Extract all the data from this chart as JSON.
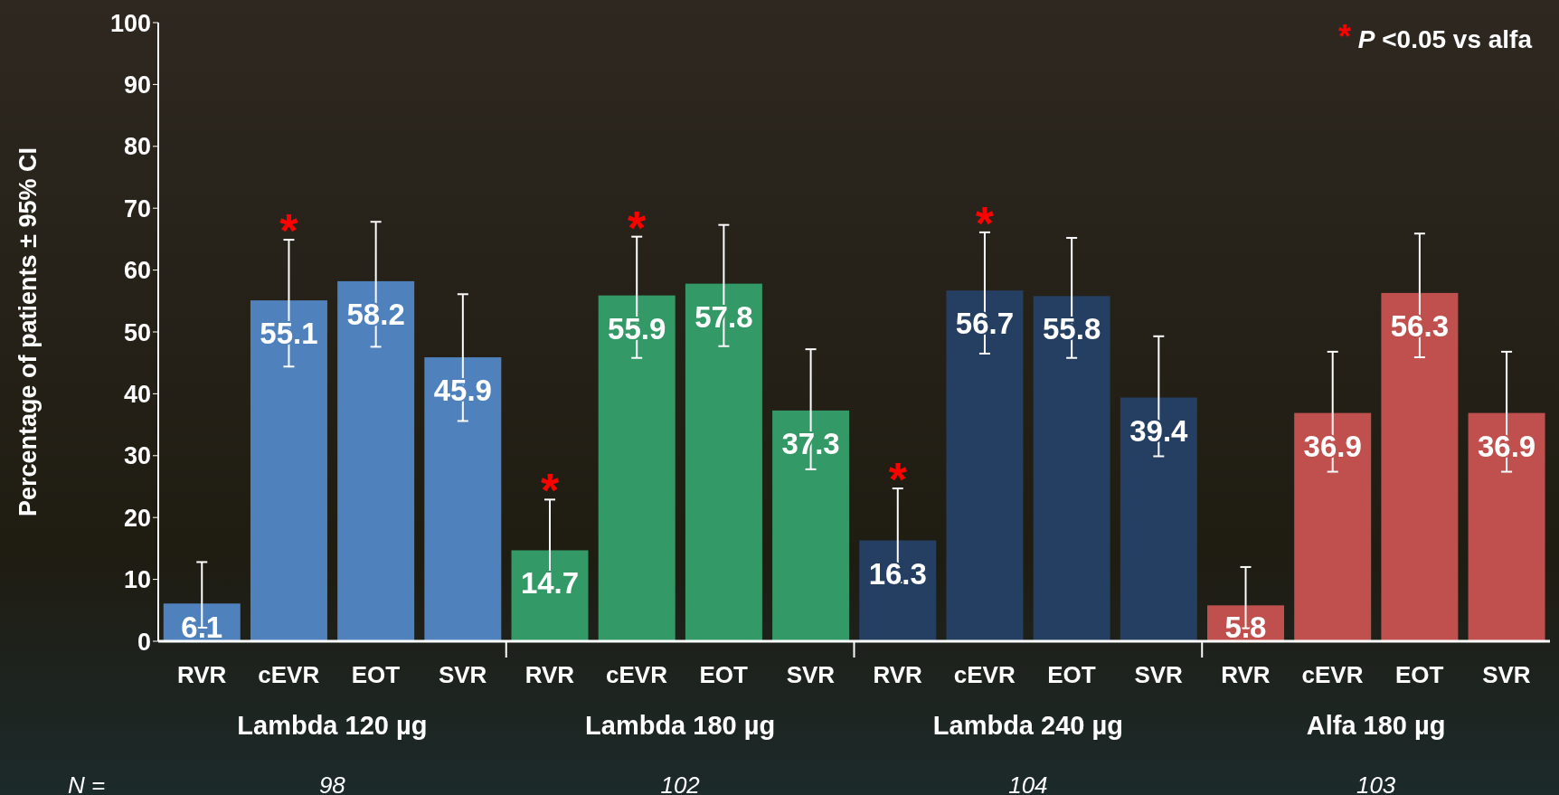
{
  "chart_data": {
    "type": "bar",
    "stacked": true,
    "ylabel": "Percentage of patients ± 95% CI",
    "categories": [
      "RVR",
      "cEVR",
      "EOT",
      "SVR",
      "RVR",
      "cEVR",
      "EOT",
      "SVR",
      "RVR",
      "cEVR",
      "EOT",
      "SVR",
      "RVR",
      "cEVR",
      "EOT",
      "SVR"
    ],
    "series": [
      {
        "name": "Lambda 120 µg",
        "color": "#4f81bd",
        "values": [
          6.1,
          55.1,
          58.2,
          45.9,
          null,
          null,
          null,
          null,
          null,
          null,
          null,
          null,
          null,
          null,
          null,
          null
        ],
        "errors": [
          [
            2.2,
            12.8
          ],
          [
            44.4,
            64.9
          ],
          [
            47.6,
            67.8
          ],
          [
            35.6,
            56.1
          ],
          null,
          null,
          null,
          null,
          null,
          null,
          null,
          null,
          null,
          null,
          null,
          null
        ]
      },
      {
        "name": "Lambda 180 µg",
        "color": "#339966",
        "values": [
          null,
          null,
          null,
          null,
          14.7,
          55.9,
          57.8,
          37.3,
          null,
          null,
          null,
          null,
          null,
          null,
          null,
          null
        ],
        "errors": [
          null,
          null,
          null,
          null,
          [
            8.4,
            22.9
          ],
          [
            45.8,
            65.4
          ],
          [
            47.7,
            67.3
          ],
          [
            27.8,
            47.2
          ],
          null,
          null,
          null,
          null,
          null,
          null,
          null,
          null
        ]
      },
      {
        "name": "Lambda 240 µg",
        "color": "#253f62",
        "values": [
          null,
          null,
          null,
          null,
          null,
          null,
          null,
          null,
          16.3,
          56.7,
          55.8,
          39.4,
          null,
          null,
          null,
          null
        ],
        "errors": [
          null,
          null,
          null,
          null,
          null,
          null,
          null,
          null,
          [
            9.5,
            24.7
          ],
          [
            46.5,
            66.1
          ],
          [
            45.8,
            65.2
          ],
          [
            29.9,
            49.3
          ],
          null,
          null,
          null,
          null
        ]
      },
      {
        "name": "Alfa 180 µg",
        "color": "#c0504d",
        "values": [
          null,
          null,
          null,
          null,
          null,
          null,
          null,
          null,
          null,
          null,
          null,
          null,
          5.8,
          36.9,
          56.3,
          36.9
        ],
        "errors": [
          null,
          null,
          null,
          null,
          null,
          null,
          null,
          null,
          null,
          null,
          null,
          null,
          [
            2.1,
            12.0
          ],
          [
            27.4,
            46.8
          ],
          [
            45.9,
            65.9
          ],
          [
            27.4,
            46.8
          ]
        ]
      }
    ],
    "ylim": [
      0,
      100
    ],
    "yticks": [
      0,
      10,
      20,
      30,
      40,
      50,
      60,
      70,
      80,
      90,
      100
    ],
    "data_labels": true,
    "annotations": [
      "* P <0.05 vs alfa",
      "N =",
      "98",
      "102",
      "104",
      "103",
      "*",
      "*",
      "*",
      "*",
      "*"
    ]
  }
}
